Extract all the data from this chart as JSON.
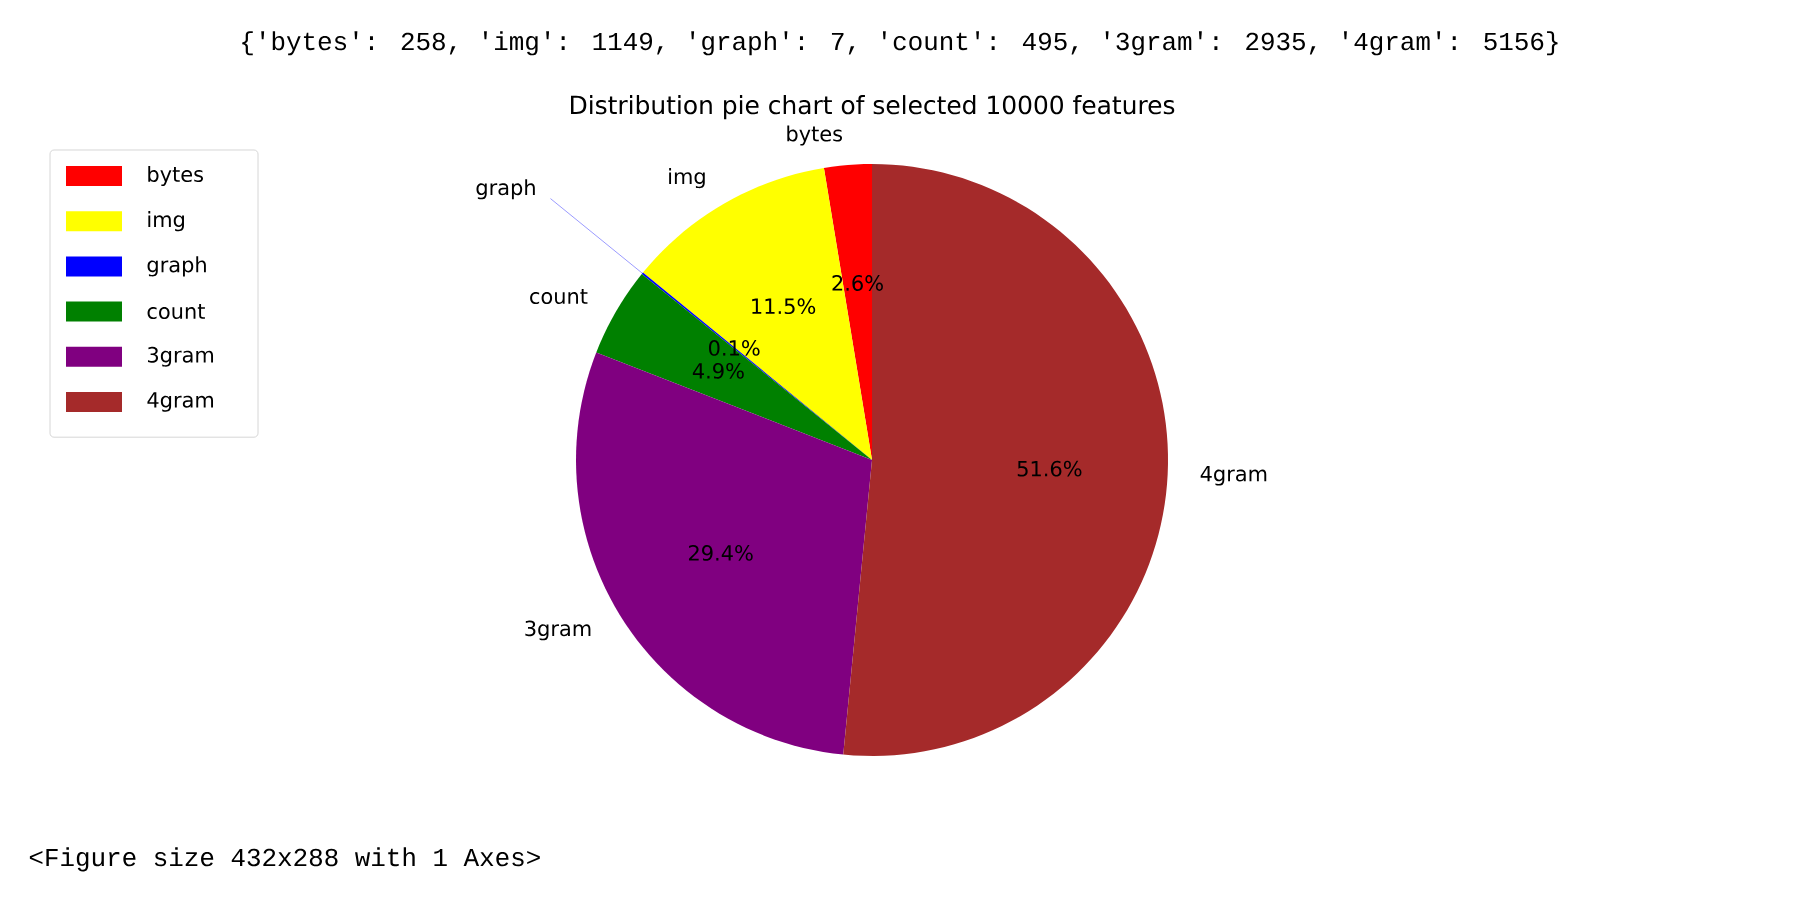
{
  "chart_data": {
    "type": "pie",
    "title": "Distribution pie chart of selected 10000 features",
    "categories": [
      "bytes",
      "img",
      "graph",
      "count",
      "3gram",
      "4gram"
    ],
    "values": [
      2.6,
      11.5,
      0.1,
      4.9,
      29.4,
      51.6
    ],
    "colors": [
      "#ff0000",
      "#ffff00",
      "#0000ff",
      "#008000",
      "#800080",
      "#a52a2a"
    ],
    "value_labels": [
      "2.6%",
      "11.5%",
      "0.1%",
      "4.9%",
      "29.4%",
      "51.6%"
    ],
    "legend": "top left",
    "annotations": [
      "{'bytes': 258, 'img': 1149, 'graph': 7, 'count': 495, '3gram': 2935, '4gram': 5156}",
      "<Figure size 432x288 with 1 Axes>"
    ]
  }
}
